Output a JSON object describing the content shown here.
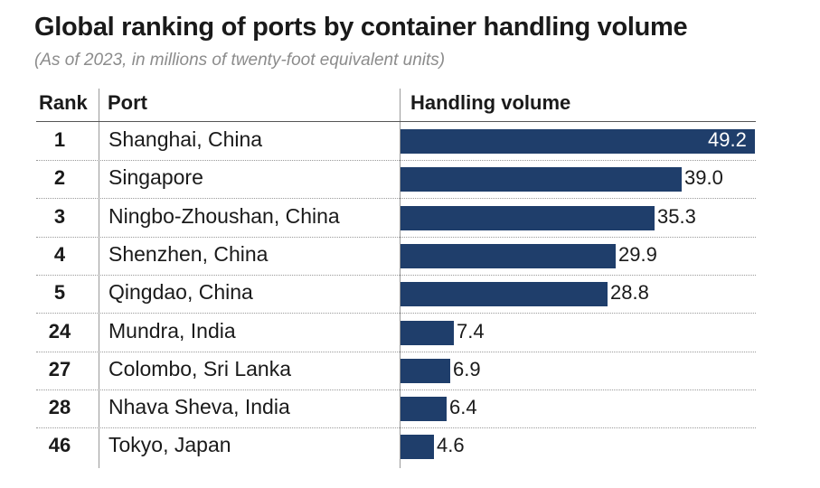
{
  "chart_data": {
    "type": "bar",
    "orientation": "horizontal",
    "title": "Global ranking of ports by container handling volume",
    "subtitle": "(As of 2023, in millions of twenty-foot equivalent units)",
    "columns": {
      "rank": "Rank",
      "port": "Port",
      "volume": "Handling volume"
    },
    "rows": [
      {
        "rank": "1",
        "port": "Shanghai, China",
        "value": 49.2,
        "label": "49.2"
      },
      {
        "rank": "2",
        "port": "Singapore",
        "value": 39.0,
        "label": "39.0"
      },
      {
        "rank": "3",
        "port": "Ningbo-Zhoushan, China",
        "value": 35.3,
        "label": "35.3"
      },
      {
        "rank": "4",
        "port": "Shenzhen, China",
        "value": 29.9,
        "label": "29.9"
      },
      {
        "rank": "5",
        "port": "Qingdao, China",
        "value": 28.8,
        "label": "28.8"
      },
      {
        "rank": "24",
        "port": "Mundra, India",
        "value": 7.4,
        "label": "7.4"
      },
      {
        "rank": "27",
        "port": "Colombo, Sri Lanka",
        "value": 6.9,
        "label": "6.9"
      },
      {
        "rank": "28",
        "port": "Nhava Sheva, India",
        "value": 6.4,
        "label": "6.4"
      },
      {
        "rank": "46",
        "port": "Tokyo, Japan",
        "value": 4.6,
        "label": "4.6"
      }
    ],
    "xlim": [
      0,
      49.2
    ],
    "bar_color": "#1f3e6b"
  }
}
